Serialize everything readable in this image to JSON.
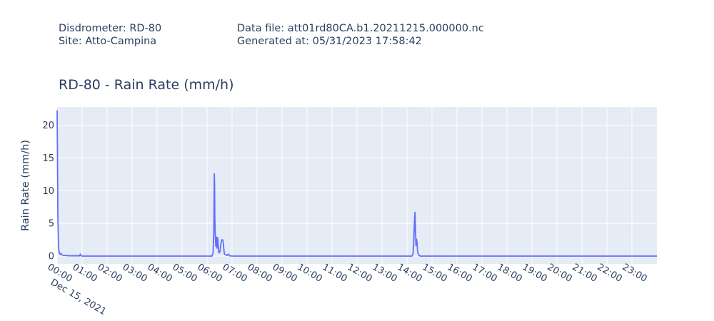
{
  "header": {
    "disdrometer": "Disdrometer: RD-80",
    "site": "Site: Atto-Campina",
    "data_file": "Data file: att01rd80CA.b1.20211215.000000.nc",
    "generated_at": "Generated at: 05/31/2023 17:58:42"
  },
  "colors": {
    "line": "#636efa",
    "plot_bg": "#e5ecf6",
    "grid": "#ffffff",
    "text": "#2a3f5f"
  },
  "chart_data": {
    "type": "line",
    "title": "RD-80 - Rain Rate (mm/h)",
    "xlabel": "",
    "ylabel": "Rain Rate (mm/h)",
    "date_label": "Dec 15, 2021",
    "xlim": [
      0,
      24
    ],
    "ylim": [
      -1.2,
      22.8
    ],
    "x_unit": "hours",
    "yticks": [
      0,
      5,
      10,
      15,
      20
    ],
    "xticks": [
      {
        "value": 0,
        "label": "00:00"
      },
      {
        "value": 1,
        "label": "01:00"
      },
      {
        "value": 2,
        "label": "02:00"
      },
      {
        "value": 3,
        "label": "03:00"
      },
      {
        "value": 4,
        "label": "04:00"
      },
      {
        "value": 5,
        "label": "05:00"
      },
      {
        "value": 6,
        "label": "06:00"
      },
      {
        "value": 7,
        "label": "07:00"
      },
      {
        "value": 8,
        "label": "08:00"
      },
      {
        "value": 9,
        "label": "09:00"
      },
      {
        "value": 10,
        "label": "10:00"
      },
      {
        "value": 11,
        "label": "11:00"
      },
      {
        "value": 12,
        "label": "12:00"
      },
      {
        "value": 13,
        "label": "13:00"
      },
      {
        "value": 14,
        "label": "14:00"
      },
      {
        "value": 15,
        "label": "15:00"
      },
      {
        "value": 16,
        "label": "16:00"
      },
      {
        "value": 17,
        "label": "17:00"
      },
      {
        "value": 18,
        "label": "18:00"
      },
      {
        "value": 19,
        "label": "19:00"
      },
      {
        "value": 20,
        "label": "20:00"
      },
      {
        "value": 21,
        "label": "21:00"
      },
      {
        "value": 22,
        "label": "22:00"
      },
      {
        "value": 23,
        "label": "23:00"
      }
    ],
    "grid": true,
    "legend": "none",
    "series": [
      {
        "x": [
          0,
          0.01,
          0.03,
          0.06,
          0.09,
          0.12,
          0.15,
          0.2,
          0.3,
          0.5,
          0.9,
          0.93,
          0.96,
          1.0,
          6.2,
          6.24,
          6.27,
          6.29,
          6.3,
          6.31,
          6.33,
          6.35,
          6.37,
          6.38,
          6.4,
          6.42,
          6.43,
          6.44,
          6.46,
          6.48,
          6.5,
          6.52,
          6.55,
          6.58,
          6.6,
          6.62,
          6.64,
          6.66,
          6.68,
          6.7,
          6.75,
          6.8,
          6.85,
          6.9,
          7.0,
          7.1,
          14.2,
          14.24,
          14.27,
          14.3,
          14.32,
          14.33,
          14.35,
          14.36,
          14.38,
          14.4,
          14.42,
          14.44,
          14.47,
          14.5,
          14.55,
          14.6,
          14.7,
          24.0
        ],
        "y": [
          22.3,
          18,
          6,
          1.2,
          0.5,
          0.3,
          0.4,
          0.15,
          0.1,
          0.05,
          0.05,
          0.3,
          0.05,
          0,
          0,
          0.5,
          3.5,
          12.6,
          11,
          6,
          3,
          1.5,
          2.5,
          2.9,
          1.2,
          1.3,
          2.8,
          2.2,
          0.8,
          0.5,
          0.5,
          0.8,
          1.8,
          2.4,
          2.5,
          2.5,
          2.3,
          1.6,
          0.7,
          0.3,
          0.2,
          0.1,
          0.3,
          0.05,
          0,
          0,
          0,
          0.3,
          2.0,
          5.5,
          6.7,
          5.6,
          2.8,
          1.6,
          2.6,
          2.2,
          0.9,
          0.4,
          0.2,
          0.05,
          0,
          0,
          0,
          0
        ]
      }
    ]
  }
}
